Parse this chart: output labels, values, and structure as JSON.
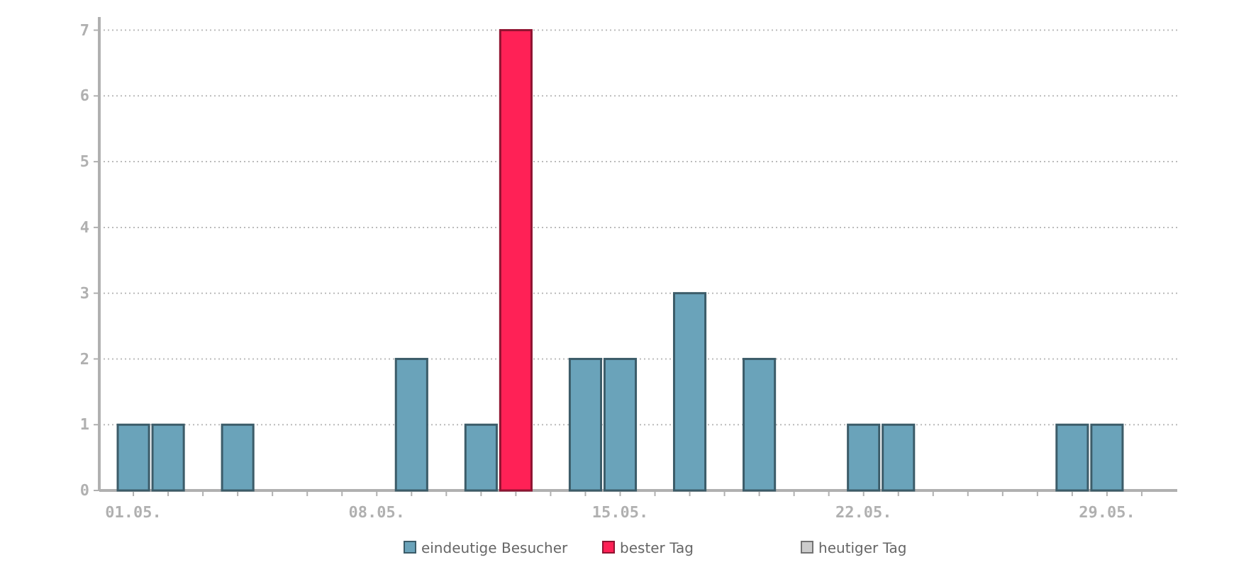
{
  "chart_data": {
    "type": "bar",
    "categories": [
      "01.05.",
      null,
      null,
      null,
      null,
      null,
      null,
      "08.05.",
      null,
      null,
      null,
      null,
      null,
      null,
      "15.05.",
      null,
      null,
      null,
      null,
      null,
      null,
      "22.05.",
      null,
      null,
      null,
      null,
      null,
      null,
      "29.05.",
      null
    ],
    "series": [
      {
        "name": "eindeutige Besucher",
        "color": "#6aa3ba",
        "values": [
          1,
          1,
          null,
          1,
          null,
          null,
          null,
          null,
          2,
          null,
          1,
          null,
          null,
          2,
          2,
          null,
          3,
          null,
          2,
          null,
          null,
          1,
          1,
          null,
          null,
          null,
          null,
          1,
          1,
          null
        ]
      },
      {
        "name": "bester Tag",
        "color": "#ff2156",
        "values": [
          null,
          null,
          null,
          null,
          null,
          null,
          null,
          null,
          null,
          null,
          null,
          7,
          null,
          null,
          null,
          null,
          null,
          null,
          null,
          null,
          null,
          null,
          null,
          null,
          null,
          null,
          null,
          null,
          null,
          null
        ]
      },
      {
        "name": "heutiger Tag",
        "color": "#cccccc",
        "values": [
          null,
          null,
          null,
          null,
          null,
          null,
          null,
          null,
          null,
          null,
          null,
          null,
          null,
          null,
          null,
          null,
          null,
          null,
          null,
          null,
          null,
          null,
          null,
          null,
          null,
          null,
          null,
          null,
          null,
          null
        ]
      }
    ],
    "ylim": [
      0,
      7.2
    ],
    "yticks": [
      0,
      1,
      2,
      3,
      4,
      5,
      6,
      7
    ],
    "grid": "y",
    "legend": "bottom"
  }
}
